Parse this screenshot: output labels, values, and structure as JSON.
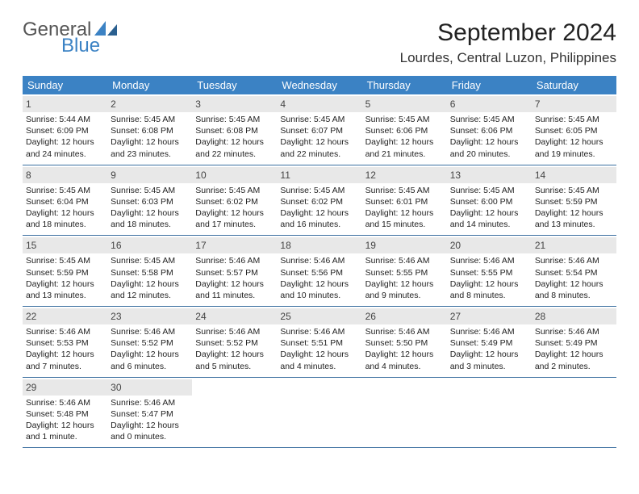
{
  "logo": {
    "text1": "General",
    "text2": "Blue"
  },
  "title": "September 2024",
  "location": "Lourdes, Central Luzon, Philippines",
  "colors": {
    "header_bg": "#3b82c4",
    "daynum_bg": "#e8e8e8",
    "week_border": "#3b6fa0"
  },
  "weekdays": [
    "Sunday",
    "Monday",
    "Tuesday",
    "Wednesday",
    "Thursday",
    "Friday",
    "Saturday"
  ],
  "weeks": [
    [
      {
        "n": "1",
        "sr": "5:44 AM",
        "ss": "6:09 PM",
        "dl": "12 hours and 24 minutes."
      },
      {
        "n": "2",
        "sr": "5:45 AM",
        "ss": "6:08 PM",
        "dl": "12 hours and 23 minutes."
      },
      {
        "n": "3",
        "sr": "5:45 AM",
        "ss": "6:08 PM",
        "dl": "12 hours and 22 minutes."
      },
      {
        "n": "4",
        "sr": "5:45 AM",
        "ss": "6:07 PM",
        "dl": "12 hours and 22 minutes."
      },
      {
        "n": "5",
        "sr": "5:45 AM",
        "ss": "6:06 PM",
        "dl": "12 hours and 21 minutes."
      },
      {
        "n": "6",
        "sr": "5:45 AM",
        "ss": "6:06 PM",
        "dl": "12 hours and 20 minutes."
      },
      {
        "n": "7",
        "sr": "5:45 AM",
        "ss": "6:05 PM",
        "dl": "12 hours and 19 minutes."
      }
    ],
    [
      {
        "n": "8",
        "sr": "5:45 AM",
        "ss": "6:04 PM",
        "dl": "12 hours and 18 minutes."
      },
      {
        "n": "9",
        "sr": "5:45 AM",
        "ss": "6:03 PM",
        "dl": "12 hours and 18 minutes."
      },
      {
        "n": "10",
        "sr": "5:45 AM",
        "ss": "6:02 PM",
        "dl": "12 hours and 17 minutes."
      },
      {
        "n": "11",
        "sr": "5:45 AM",
        "ss": "6:02 PM",
        "dl": "12 hours and 16 minutes."
      },
      {
        "n": "12",
        "sr": "5:45 AM",
        "ss": "6:01 PM",
        "dl": "12 hours and 15 minutes."
      },
      {
        "n": "13",
        "sr": "5:45 AM",
        "ss": "6:00 PM",
        "dl": "12 hours and 14 minutes."
      },
      {
        "n": "14",
        "sr": "5:45 AM",
        "ss": "5:59 PM",
        "dl": "12 hours and 13 minutes."
      }
    ],
    [
      {
        "n": "15",
        "sr": "5:45 AM",
        "ss": "5:59 PM",
        "dl": "12 hours and 13 minutes."
      },
      {
        "n": "16",
        "sr": "5:45 AM",
        "ss": "5:58 PM",
        "dl": "12 hours and 12 minutes."
      },
      {
        "n": "17",
        "sr": "5:46 AM",
        "ss": "5:57 PM",
        "dl": "12 hours and 11 minutes."
      },
      {
        "n": "18",
        "sr": "5:46 AM",
        "ss": "5:56 PM",
        "dl": "12 hours and 10 minutes."
      },
      {
        "n": "19",
        "sr": "5:46 AM",
        "ss": "5:55 PM",
        "dl": "12 hours and 9 minutes."
      },
      {
        "n": "20",
        "sr": "5:46 AM",
        "ss": "5:55 PM",
        "dl": "12 hours and 8 minutes."
      },
      {
        "n": "21",
        "sr": "5:46 AM",
        "ss": "5:54 PM",
        "dl": "12 hours and 8 minutes."
      }
    ],
    [
      {
        "n": "22",
        "sr": "5:46 AM",
        "ss": "5:53 PM",
        "dl": "12 hours and 7 minutes."
      },
      {
        "n": "23",
        "sr": "5:46 AM",
        "ss": "5:52 PM",
        "dl": "12 hours and 6 minutes."
      },
      {
        "n": "24",
        "sr": "5:46 AM",
        "ss": "5:52 PM",
        "dl": "12 hours and 5 minutes."
      },
      {
        "n": "25",
        "sr": "5:46 AM",
        "ss": "5:51 PM",
        "dl": "12 hours and 4 minutes."
      },
      {
        "n": "26",
        "sr": "5:46 AM",
        "ss": "5:50 PM",
        "dl": "12 hours and 4 minutes."
      },
      {
        "n": "27",
        "sr": "5:46 AM",
        "ss": "5:49 PM",
        "dl": "12 hours and 3 minutes."
      },
      {
        "n": "28",
        "sr": "5:46 AM",
        "ss": "5:49 PM",
        "dl": "12 hours and 2 minutes."
      }
    ],
    [
      {
        "n": "29",
        "sr": "5:46 AM",
        "ss": "5:48 PM",
        "dl": "12 hours and 1 minute."
      },
      {
        "n": "30",
        "sr": "5:46 AM",
        "ss": "5:47 PM",
        "dl": "12 hours and 0 minutes."
      },
      null,
      null,
      null,
      null,
      null
    ]
  ],
  "labels": {
    "sunrise": "Sunrise: ",
    "sunset": "Sunset: ",
    "daylight": "Daylight: "
  }
}
